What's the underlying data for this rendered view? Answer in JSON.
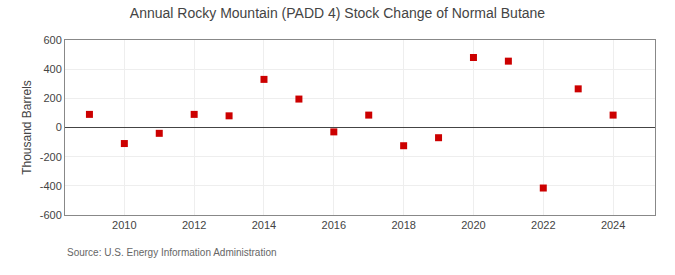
{
  "chart_data": {
    "type": "scatter",
    "title": "Annual Rocky Mountain (PADD 4) Stock Change of Normal Butane",
    "ylabel": "Thousand Barrels",
    "annotations": [
      "Source: U.S. Energy Information Administration"
    ],
    "x": [
      2009,
      2010,
      2011,
      2012,
      2013,
      2014,
      2015,
      2016,
      2017,
      2018,
      2019,
      2020,
      2021,
      2022,
      2023,
      2024
    ],
    "values": [
      90,
      -110,
      -40,
      90,
      80,
      330,
      195,
      -30,
      85,
      -125,
      -70,
      480,
      455,
      -415,
      265,
      85
    ],
    "color": "#cc0000",
    "marker": "square",
    "ylim": [
      -600,
      600
    ],
    "yticks": [
      -600,
      -400,
      -200,
      0,
      200,
      400,
      600
    ],
    "xlim": [
      2008.3,
      2025.2
    ],
    "xticks": [
      2010,
      2012,
      2014,
      2016,
      2018,
      2020,
      2022,
      2024
    ],
    "grid": true
  }
}
